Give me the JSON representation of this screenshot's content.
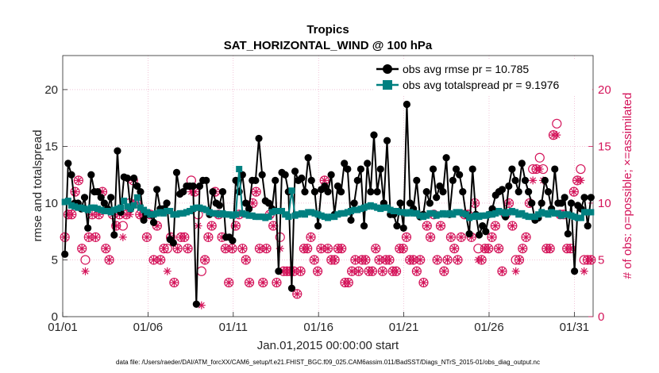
{
  "chart_data": {
    "type": "line",
    "title": "Tropics",
    "subtitle": "SAT_HORIZONTAL_WIND @ 100 hPa",
    "xlabel": "Jan.01,2015 00:00:00 start",
    "ylabel": "rmse and totalspread",
    "ylabel_right": "# of obs: o=possible; ×=assimilated",
    "footnote": "data file: /Users/raeder/DAI/ATM_forcXX/CAM6_setup/f.e21.FHIST_BGC.f09_025.CAM6assim.011/BadSST/Diags_NTrS_2015-01/obs_diag_output.nc",
    "x_ticks": [
      {
        "day": 1,
        "label": "01/01"
      },
      {
        "day": 6,
        "label": "01/06"
      },
      {
        "day": 11,
        "label": "01/11"
      },
      {
        "day": 16,
        "label": "01/16"
      },
      {
        "day": 21,
        "label": "01/21"
      },
      {
        "day": 26,
        "label": "01/26"
      },
      {
        "day": 31,
        "label": "01/31"
      }
    ],
    "xlim": [
      1,
      32.1
    ],
    "ylim": [
      0,
      23
    ],
    "y_ticks": [
      0,
      5,
      10,
      15,
      20
    ],
    "y2lim": [
      0,
      23
    ],
    "y2_ticks": [
      0,
      5,
      10,
      15,
      20
    ],
    "colors": {
      "rmse": "#000000",
      "spread": "#008080",
      "obs": "#d4145a"
    },
    "series": [
      {
        "name": "obs avg rmse",
        "legend": "obs avg rmse pr = 10.785",
        "values": [
          5.5,
          13.5,
          12.5,
          10,
          10,
          9.5,
          10.5,
          7.8,
          12.5,
          11,
          11,
          10.5,
          10,
          9.5,
          10.5,
          7.2,
          14.6,
          9.2,
          12.3,
          12.2,
          9.5,
          12.2,
          11.5,
          11,
          8.5,
          9,
          9,
          8.3,
          11.2,
          9.5,
          9.5,
          10,
          6.8,
          6.5,
          12.7,
          10.8,
          11,
          11.5,
          11.5,
          11.5,
          1.1,
          11.5,
          12,
          12,
          9,
          11,
          10,
          9.8,
          11,
          7,
          7,
          6.7,
          12,
          11,
          12.5,
          10,
          9.5,
          12,
          12,
          15.7,
          12.5,
          10.2,
          10,
          9.5,
          12,
          4,
          12.7,
          12.5,
          11,
          2.5,
          12.8,
          12,
          12.2,
          11,
          14,
          12,
          11,
          8,
          11.2,
          11.5,
          11,
          12.5,
          9,
          11.5,
          11,
          13.5,
          13,
          8.5,
          10,
          12,
          13,
          8,
          13.5,
          11,
          16,
          11,
          13,
          10,
          15.5,
          9,
          9,
          8,
          10,
          7.8,
          18.7,
          10,
          9.5,
          12,
          8.8,
          9,
          11,
          10,
          13,
          10.5,
          11.5,
          11,
          14,
          9,
          12,
          13,
          12.5,
          11,
          9,
          7.3,
          13,
          9,
          7.2,
          8,
          7.5,
          9,
          9.5,
          10.7,
          11,
          11.2,
          8.8,
          11.5,
          13,
          12,
          11,
          13.5,
          12,
          11,
          10,
          8.5,
          8.7,
          10,
          12,
          11,
          9.5,
          13,
          10,
          10,
          10.5,
          7.3,
          10,
          4,
          9.8,
          9.5,
          10.5,
          8,
          10.5
        ],
        "marker": "circle"
      },
      {
        "name": "obs avg totalspread",
        "legend": "obs avg totalspread pr = 9.1976",
        "values": [
          10.1,
          10.2,
          9.8,
          9.7,
          9.6,
          9.6,
          9.5,
          9.4,
          9.6,
          9.6,
          9.5,
          9.4,
          9.3,
          9.3,
          9.2,
          9.4,
          9.5,
          9.6,
          10.2,
          9.7,
          9.5,
          9.8,
          10.5,
          9.6,
          9.4,
          9.2,
          9,
          9,
          9.1,
          9.2,
          9.1,
          9.3,
          9.3,
          9,
          9,
          9.1,
          9.1,
          9.2,
          9.3,
          9.5,
          9.6,
          9.6,
          9.5,
          9.4,
          9.2,
          9.1,
          9.1,
          9,
          9.1,
          9,
          9,
          8.9,
          9,
          13,
          9.1,
          9,
          8.9,
          8.9,
          8.8,
          8.8,
          8.8,
          8.7,
          8.8,
          9.2,
          9.3,
          9.3,
          9.3,
          9,
          8.8,
          11.1,
          8.9,
          9,
          9.1,
          9,
          9.2,
          9.2,
          9.1,
          9,
          8.9,
          8.8,
          8.7,
          8.8,
          8.8,
          9,
          9.1,
          9.1,
          9.2,
          9.3,
          9.4,
          9.4,
          9.5,
          9.6,
          9.7,
          9.8,
          9.7,
          9.6,
          9.5,
          9.6,
          9.6,
          9.4,
          9.3,
          9.3,
          9.2,
          9.2,
          9.1,
          9.2,
          9.1,
          9.1,
          8.9,
          8.8,
          8.9,
          9.1,
          9.1,
          8.9,
          9,
          9.1,
          9,
          9.1,
          9,
          9.2,
          9.2,
          9.1,
          9,
          8.7,
          8.8,
          8.9,
          8.8,
          8.9,
          8.9,
          9,
          9,
          9.1,
          9.3,
          9.2,
          9.1,
          9.2,
          9.3,
          9.2,
          9,
          9.1,
          8.9,
          8.8,
          8.8,
          8.8,
          9,
          9.2,
          9.1,
          9,
          9.2,
          9.1,
          9.1,
          8.9,
          9,
          9,
          8.9,
          8.8,
          8.7,
          8.7,
          9.2,
          9.2,
          9.2
        ],
        "marker": "square"
      },
      {
        "name": "# obs possible",
        "values": [
          7,
          9,
          9,
          11,
          12,
          6,
          5,
          7,
          9,
          7,
          9,
          11,
          6,
          5,
          9,
          8,
          9,
          8,
          9,
          10,
          12,
          10,
          9,
          9,
          7,
          9,
          5,
          8,
          5,
          6,
          6,
          7,
          3,
          6,
          7,
          7,
          6,
          12,
          11,
          9,
          4,
          5,
          7,
          8,
          11,
          9,
          7,
          6,
          3,
          6,
          8,
          9,
          6,
          5,
          3,
          10,
          11,
          6,
          3,
          6,
          9,
          8,
          3,
          7,
          4,
          4,
          4,
          4,
          2,
          4,
          6,
          6,
          7,
          5,
          4,
          6,
          12,
          6,
          5,
          5,
          6,
          6,
          3,
          3,
          4,
          5,
          4,
          5,
          5,
          4,
          4,
          6,
          5,
          4,
          5,
          5,
          4,
          4,
          6,
          6,
          7,
          5,
          5,
          4,
          5,
          3,
          8,
          7,
          9,
          5,
          8,
          4,
          5,
          7,
          6,
          5,
          7,
          9,
          9,
          7,
          10,
          6,
          5,
          6,
          6,
          7,
          8,
          6,
          4,
          9,
          10,
          8,
          5,
          5,
          6,
          7,
          10,
          13,
          13,
          14,
          13,
          6,
          6,
          16,
          17,
          9,
          9,
          6,
          6,
          11,
          12,
          13,
          5,
          5,
          5
        ],
        "marker": "circle-open"
      },
      {
        "name": "# obs assimilated",
        "values": [
          7,
          9,
          9,
          11,
          12,
          6,
          4,
          7,
          9,
          7,
          9,
          11,
          6,
          5,
          9,
          8,
          9,
          7,
          9,
          9,
          12,
          10,
          9,
          9,
          7,
          9,
          5,
          8,
          5,
          6,
          4,
          7,
          3,
          6,
          7,
          7,
          6,
          11,
          11,
          8,
          1,
          5,
          7,
          8,
          11,
          9,
          7,
          6,
          3,
          6,
          8,
          9,
          6,
          5,
          3,
          10,
          11,
          6,
          3,
          6,
          9,
          8,
          3,
          6,
          4,
          4,
          4,
          4,
          2,
          4,
          6,
          6,
          7,
          5,
          4,
          6,
          12,
          6,
          5,
          5,
          6,
          6,
          3,
          3,
          4,
          5,
          4,
          5,
          5,
          4,
          4,
          6,
          5,
          4,
          5,
          5,
          4,
          4,
          6,
          6,
          7,
          5,
          5,
          4,
          5,
          3,
          8,
          7,
          9,
          5,
          8,
          4,
          5,
          7,
          6,
          5,
          7,
          9,
          9,
          7,
          10,
          5,
          5,
          6,
          6,
          7,
          8,
          6,
          4,
          9,
          10,
          8,
          4,
          5,
          6,
          7,
          10,
          12,
          13,
          13,
          12,
          6,
          6,
          16,
          16,
          9,
          9,
          6,
          6,
          11,
          12,
          12,
          4,
          5,
          5
        ],
        "marker": "asterisk"
      }
    ]
  }
}
